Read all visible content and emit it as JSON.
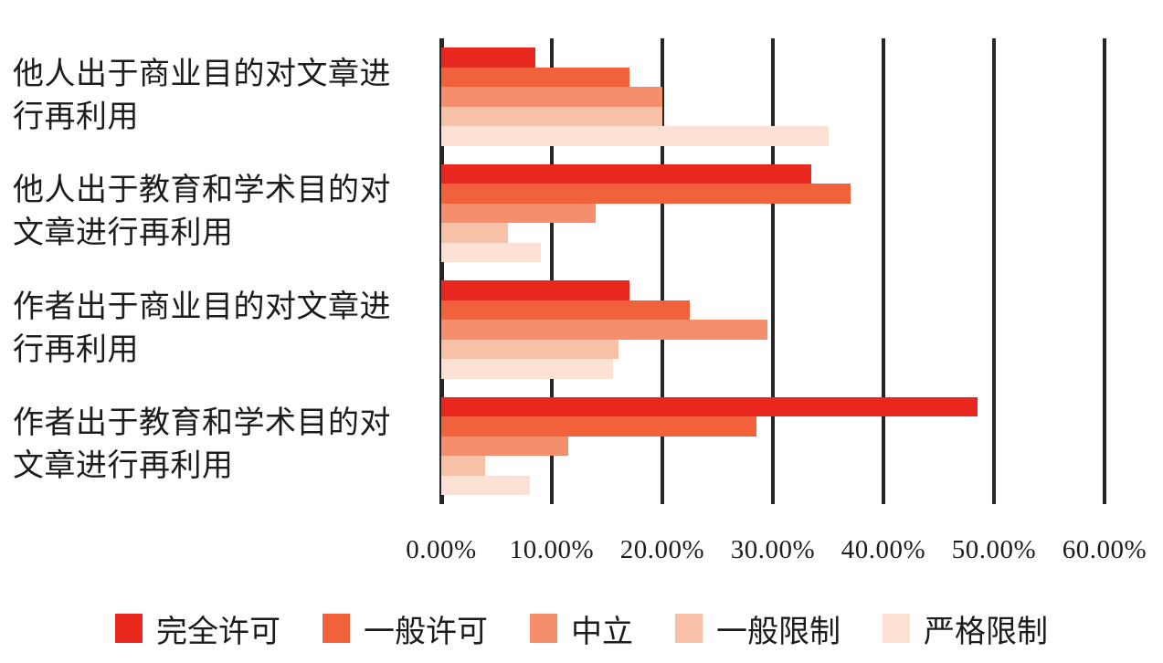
{
  "chart_data": {
    "type": "bar",
    "orientation": "horizontal",
    "title": "",
    "xlabel": "",
    "ylabel": "",
    "xlim": [
      0,
      60
    ],
    "grid": true,
    "legend_position": "bottom",
    "x_tick_labels": [
      "0.00%",
      "10.00%",
      "20.00%",
      "30.00%",
      "40.00%",
      "50.00%",
      "60.00%"
    ],
    "categories": [
      "他人出于商业目的对文章进行再利用",
      "他人出于教育和学术目的对文章进行再利用",
      "作者出于商业目的对文章进行再利用",
      "作者出于教育和学术目的对文章进行再利用"
    ],
    "series": [
      {
        "name": "完全许可",
        "color": "#e8271f",
        "values": [
          8.5,
          33.5,
          17.0,
          48.5
        ]
      },
      {
        "name": "一般许可",
        "color": "#f0613c",
        "values": [
          17.0,
          37.0,
          22.5,
          28.5
        ]
      },
      {
        "name": "中立",
        "color": "#f58e6c",
        "values": [
          20.0,
          14.0,
          29.5,
          11.5
        ]
      },
      {
        "name": "一般限制",
        "color": "#f9c0a8",
        "values": [
          20.0,
          6.0,
          16.0,
          4.0
        ]
      },
      {
        "name": "严格限制",
        "color": "#fce1d4",
        "values": [
          35.0,
          9.0,
          15.5,
          8.0
        ]
      }
    ]
  },
  "colors": {
    "axis_line": "#262626",
    "text": "#1c1c1c",
    "background": "#ffffff"
  }
}
